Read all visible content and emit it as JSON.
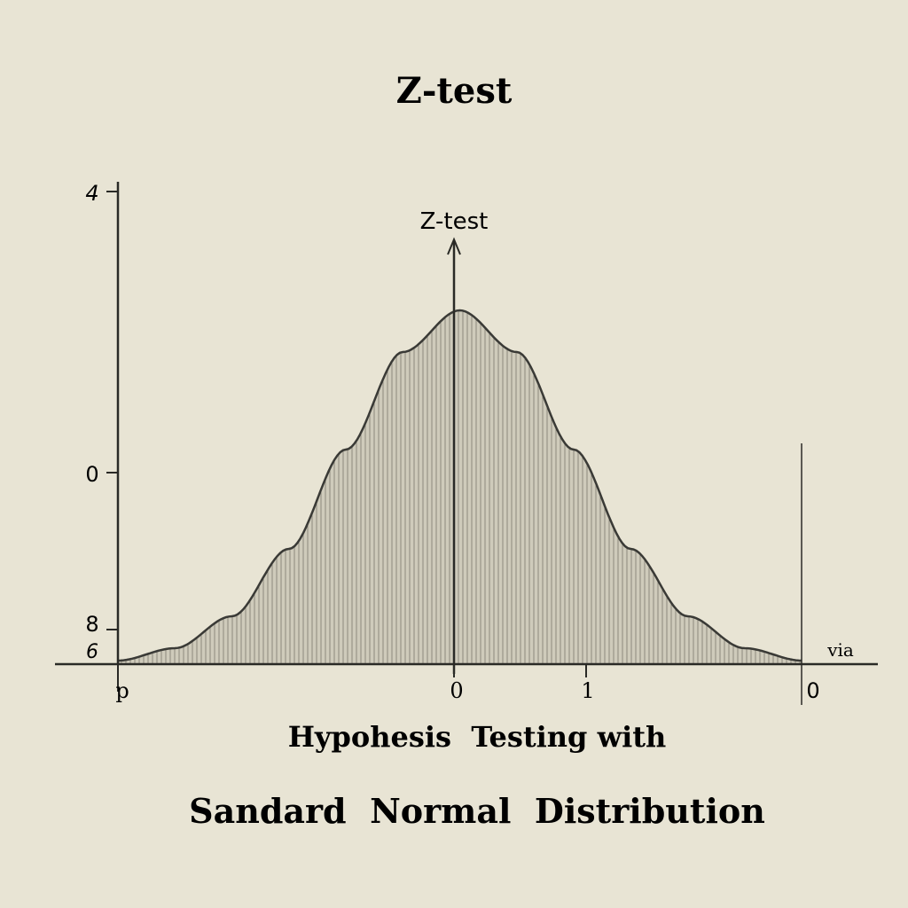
{
  "title": "Z-test",
  "chart_data": {
    "type": "area",
    "annotation": "Z-test",
    "y_ticks": [
      "4",
      "0",
      "8",
      "6"
    ],
    "x_ticks": [
      "p",
      "0",
      "1",
      "0"
    ],
    "x_end_label": "via",
    "caption_line1": "Hypohesis  Testing with",
    "caption_line2": "Sandard  Normal  Distribution",
    "x": [
      -3.0,
      -2.5,
      -2.0,
      -1.5,
      -1.0,
      -0.5,
      0.0,
      0.5,
      1.0,
      1.5,
      2.0,
      2.5,
      3.0
    ],
    "y": [
      0.004,
      0.018,
      0.054,
      0.13,
      0.242,
      0.352,
      0.399,
      0.352,
      0.242,
      0.13,
      0.054,
      0.018,
      0.004
    ],
    "xlim": [
      -3,
      3
    ],
    "ylim": [
      0,
      0.5
    ],
    "fill": "#c9c6b6",
    "line_color": "#3a3a36"
  }
}
